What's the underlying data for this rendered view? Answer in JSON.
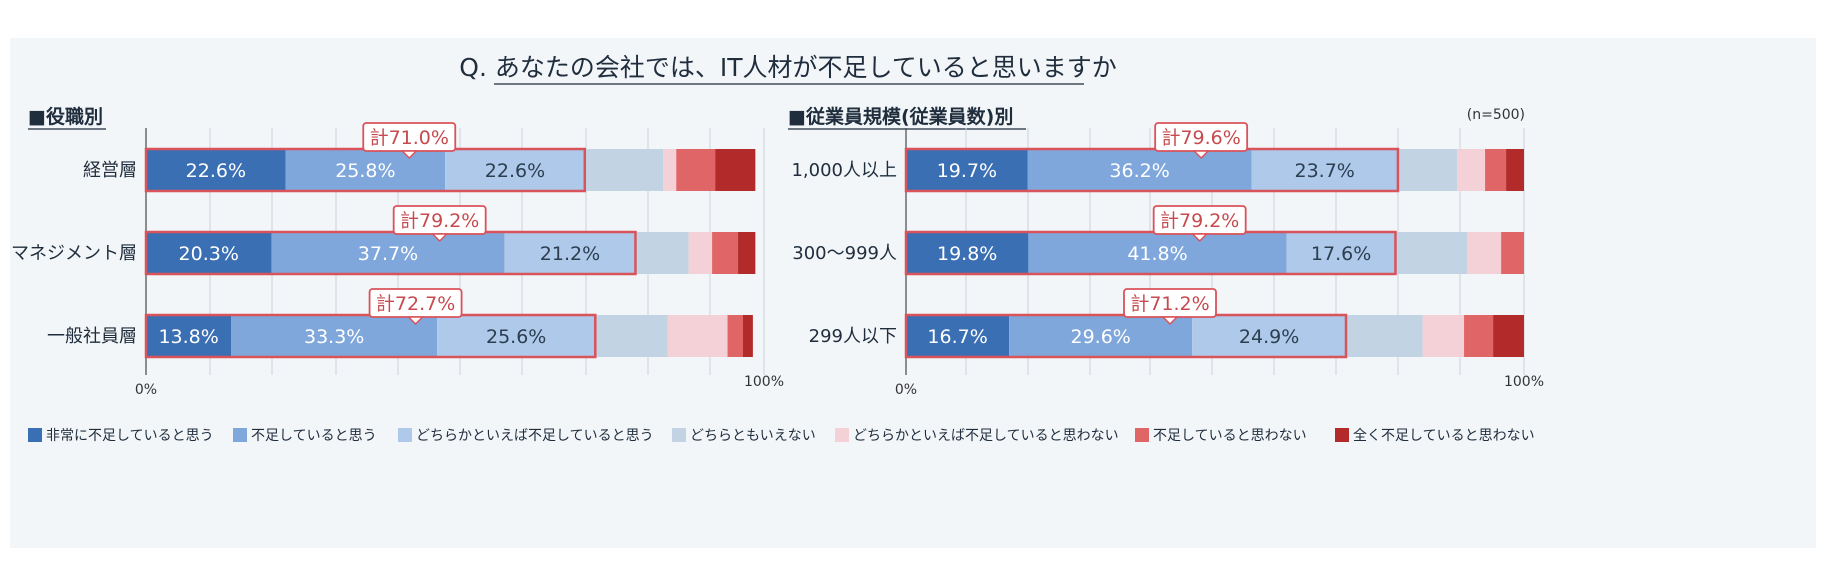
{
  "chart_data": {
    "type": "bar",
    "orientation": "horizontal",
    "stacked": true,
    "title": "Q. あなたの会社では、IT人材が不足していると思いますか",
    "sample_note": "(n=500)",
    "xlim": [
      0,
      100
    ],
    "x_tick_labels": [
      "0%",
      "100%"
    ],
    "colors": [
      "#3b6fb3",
      "#7fa7dc",
      "#aec9ea",
      "#c2d3e3",
      "#f3d1d6",
      "#e06566",
      "#b22a2a"
    ],
    "legend": [
      "非常に不足していると思う",
      "不足していると思う",
      "どちらかといえば不足していると思う",
      "どちらともいえない",
      "どちらかといえば不足していると思わない",
      "不足していると思わない",
      "全く不足していると思わない"
    ],
    "panels": [
      {
        "heading": "■役職別",
        "categories": [
          "経営層",
          "マネジメント層",
          "一般社員層"
        ],
        "rows": [
          {
            "values": [
              22.6,
              25.8,
              22.6,
              12.7,
              2.1,
              6.3,
              6.5
            ],
            "labels": [
              "22.6%",
              "25.8%",
              "22.6%"
            ],
            "total_label": "計71.0%"
          },
          {
            "values": [
              20.3,
              37.7,
              21.2,
              8.6,
              3.8,
              4.2,
              2.8
            ],
            "labels": [
              "20.3%",
              "37.7%",
              "21.2%"
            ],
            "total_label": "計79.2%"
          },
          {
            "values": [
              13.8,
              33.3,
              25.6,
              11.7,
              9.7,
              2.5,
              1.6
            ],
            "labels": [
              "13.8%",
              "33.3%",
              "25.6%"
            ],
            "total_label": "計72.7%"
          }
        ]
      },
      {
        "heading": "■従業員規模(従業員数)別",
        "categories": [
          "1,000人以上",
          "300〜999人",
          "299人以下"
        ],
        "rows": [
          {
            "values": [
              19.7,
              36.2,
              23.7,
              9.6,
              4.5,
              3.4,
              2.9
            ],
            "labels": [
              "19.7%",
              "36.2%",
              "23.7%"
            ],
            "total_label": "計79.6%"
          },
          {
            "values": [
              19.8,
              41.8,
              17.6,
              11.6,
              5.5,
              3.7,
              0.0
            ],
            "labels": [
              "19.8%",
              "41.8%",
              "17.6%"
            ],
            "total_label": "計79.2%"
          },
          {
            "values": [
              16.7,
              29.6,
              24.9,
              12.4,
              6.7,
              4.7,
              5.0
            ],
            "labels": [
              "16.7%",
              "29.6%",
              "24.9%"
            ],
            "total_label": "計71.2%"
          }
        ]
      }
    ]
  }
}
